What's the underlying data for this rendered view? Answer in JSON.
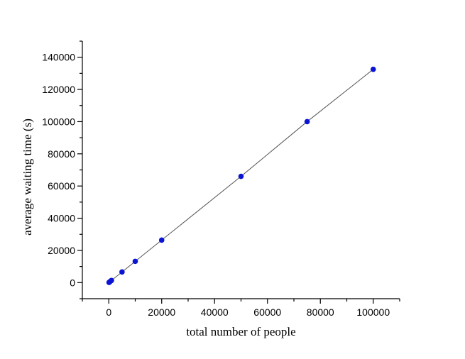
{
  "chart_data": {
    "type": "scatter",
    "title": "",
    "xlabel": "total number of people",
    "ylabel": "average waiting time (s)",
    "xlim": [
      -10000,
      110000
    ],
    "ylim": [
      -10000,
      150000
    ],
    "x_ticks": [
      0,
      20000,
      40000,
      60000,
      80000,
      100000
    ],
    "y_ticks": [
      0,
      20000,
      40000,
      60000,
      80000,
      100000,
      120000,
      140000
    ],
    "grid": false,
    "legend": "none",
    "fit_line": true,
    "colors": {
      "marker": "#0a14d2",
      "line": "#555555",
      "axis": "#000000"
    },
    "series": [
      {
        "x": [
          100,
          500,
          1000,
          5000,
          10000,
          20000,
          50000,
          75000,
          100000
        ],
        "y": [
          130,
          660,
          1330,
          6600,
          13200,
          26400,
          66000,
          100000,
          132500
        ]
      }
    ]
  }
}
